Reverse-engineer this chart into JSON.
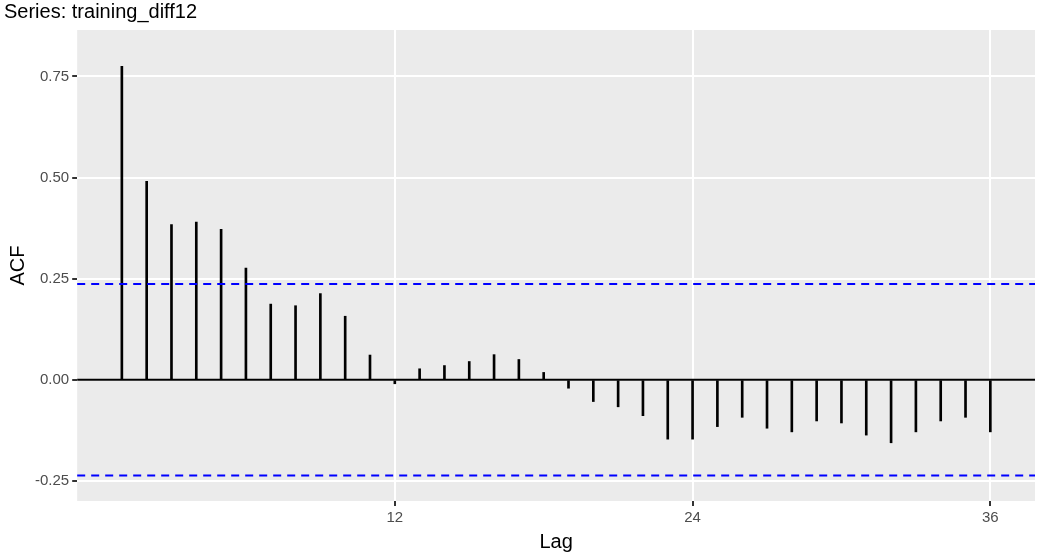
{
  "chart_data": {
    "type": "bar",
    "title": "Series: training_diff12",
    "xlabel": "Lag",
    "ylabel": "ACF",
    "x": [
      1,
      2,
      3,
      4,
      5,
      6,
      7,
      8,
      9,
      10,
      11,
      12,
      13,
      14,
      15,
      16,
      17,
      18,
      19,
      20,
      21,
      22,
      23,
      24,
      25,
      26,
      27,
      28,
      29,
      30,
      31,
      32,
      33,
      34,
      35,
      36
    ],
    "values": [
      0.775,
      0.491,
      0.384,
      0.39,
      0.372,
      0.276,
      0.187,
      0.183,
      0.213,
      0.157,
      0.061,
      -0.01,
      0.027,
      0.035,
      0.045,
      0.062,
      0.05,
      0.018,
      -0.021,
      -0.054,
      -0.067,
      -0.089,
      -0.147,
      -0.147,
      -0.116,
      -0.093,
      -0.12,
      -0.129,
      -0.102,
      -0.107,
      -0.137,
      -0.156,
      -0.129,
      -0.102,
      -0.093,
      -0.129
    ],
    "color": "#000000",
    "xlim": [
      -0.8,
      37.8
    ],
    "xticks": [
      12,
      24,
      36
    ],
    "ylim": [
      -0.3,
      0.865
    ],
    "yticks": [
      {
        "value": -0.25,
        "label": "-0.25"
      },
      {
        "value": 0,
        "label": "0.00"
      },
      {
        "value": 0.25,
        "label": "0.25"
      },
      {
        "value": 0.5,
        "label": "0.50"
      },
      {
        "value": 0.75,
        "label": "0.75"
      }
    ],
    "ref_lines": [
      {
        "axis": "y",
        "value": 0,
        "color": "#000000",
        "line_style": "solid"
      },
      {
        "axis": "y",
        "value": 0.237,
        "color": "#0000ff",
        "line_style": "dashed"
      },
      {
        "axis": "y",
        "value": -0.237,
        "color": "#0000ff",
        "line_style": "dashed"
      }
    ],
    "grid": true,
    "legend": false
  }
}
